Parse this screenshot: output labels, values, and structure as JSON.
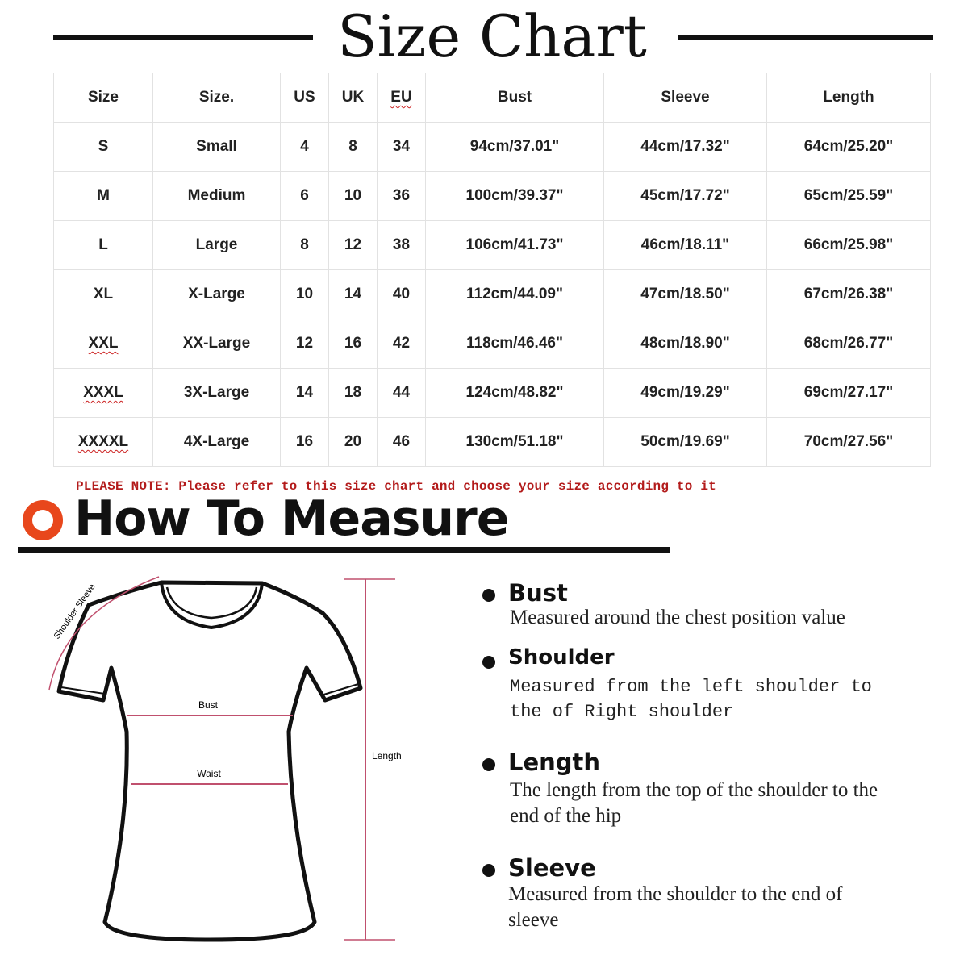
{
  "title": "Size Chart",
  "table": {
    "headers": [
      "Size",
      "Size.",
      "US",
      "UK",
      "EU",
      "Bust",
      "Sleeve",
      "Length"
    ],
    "rows": [
      [
        "S",
        "Small",
        "4",
        "8",
        "34",
        "94cm/37.01\"",
        "44cm/17.32\"",
        "64cm/25.20\""
      ],
      [
        "M",
        "Medium",
        "6",
        "10",
        "36",
        "100cm/39.37\"",
        "45cm/17.72\"",
        "65cm/25.59\""
      ],
      [
        "L",
        "Large",
        "8",
        "12",
        "38",
        "106cm/41.73\"",
        "46cm/18.11\"",
        "66cm/25.98\""
      ],
      [
        "XL",
        "X-Large",
        "10",
        "14",
        "40",
        "112cm/44.09\"",
        "47cm/18.50\"",
        "67cm/26.38\""
      ],
      [
        "XXL",
        "XX-Large",
        "12",
        "16",
        "42",
        "118cm/46.46\"",
        "48cm/18.90\"",
        "68cm/26.77\""
      ],
      [
        "XXXL",
        "3X-Large",
        "14",
        "18",
        "44",
        "124cm/48.82\"",
        "49cm/19.29\"",
        "69cm/27.17\""
      ],
      [
        "XXXXL",
        "4X-Large",
        "16",
        "20",
        "46",
        "130cm/51.18\"",
        "50cm/19.69\"",
        "70cm/27.56\""
      ]
    ]
  },
  "note": "PLEASE NOTE: Please refer to this size chart and choose your size according to it",
  "how_to_measure": {
    "title": "How To Measure",
    "icon": "circle-ring-icon",
    "accent": "#e8471c",
    "diagram_labels": {
      "shoulder_sleeve": "Shoulder Sleeve",
      "bust": "Bust",
      "waist": "Waist",
      "length": "Length"
    },
    "items": [
      {
        "name": "Bust",
        "desc": "Measured around the chest position value"
      },
      {
        "name": "Shoulder",
        "desc": "Measured from the left shoulder to the of Right shoulder"
      },
      {
        "name": "Length",
        "desc": "The length from the top of the shoulder to the end of the hip"
      },
      {
        "name": "Sleeve",
        "desc": "Measured from the shoulder to the end of sleeve"
      }
    ]
  },
  "colors": {
    "note": "#b31b1b",
    "measure_line": "#c0506e"
  }
}
